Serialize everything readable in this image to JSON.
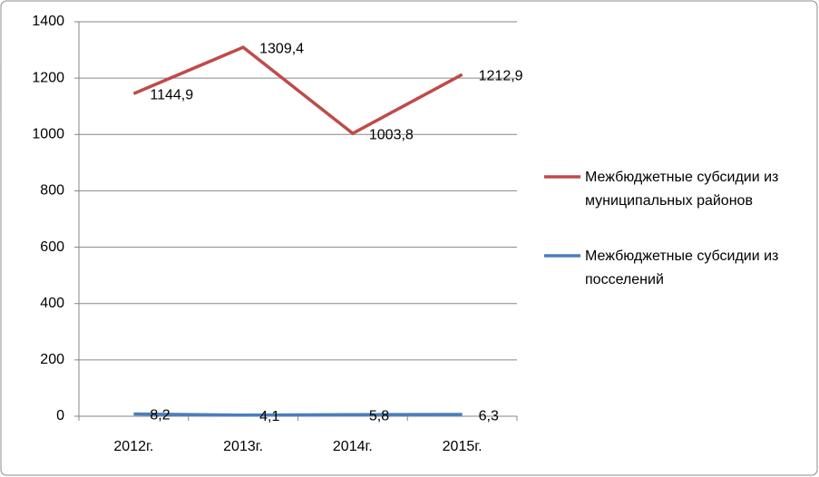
{
  "chart_data": {
    "type": "line",
    "categories": [
      "2012г.",
      "2013г.",
      "2014г.",
      "2015г."
    ],
    "series": [
      {
        "name": "Межбюджетные субсидии из муниципальных районов",
        "color": "#be4b48",
        "values": [
          1144.9,
          1309.4,
          1003.8,
          1212.9
        ],
        "value_labels": [
          "1144,9",
          "1309,4",
          "1003,8",
          "1212,9"
        ]
      },
      {
        "name": "Межбюджетные субсидии из посселений",
        "color": "#4a7ebb",
        "values": [
          8.2,
          4.1,
          5.8,
          6.3
        ],
        "value_labels": [
          "8,2",
          "4,1",
          "5,8",
          "6,3"
        ]
      }
    ],
    "ylim": [
      0,
      1400
    ],
    "yticks": [
      0,
      200,
      400,
      600,
      800,
      1000,
      1200,
      1400
    ],
    "grid": true,
    "legend": "right"
  }
}
